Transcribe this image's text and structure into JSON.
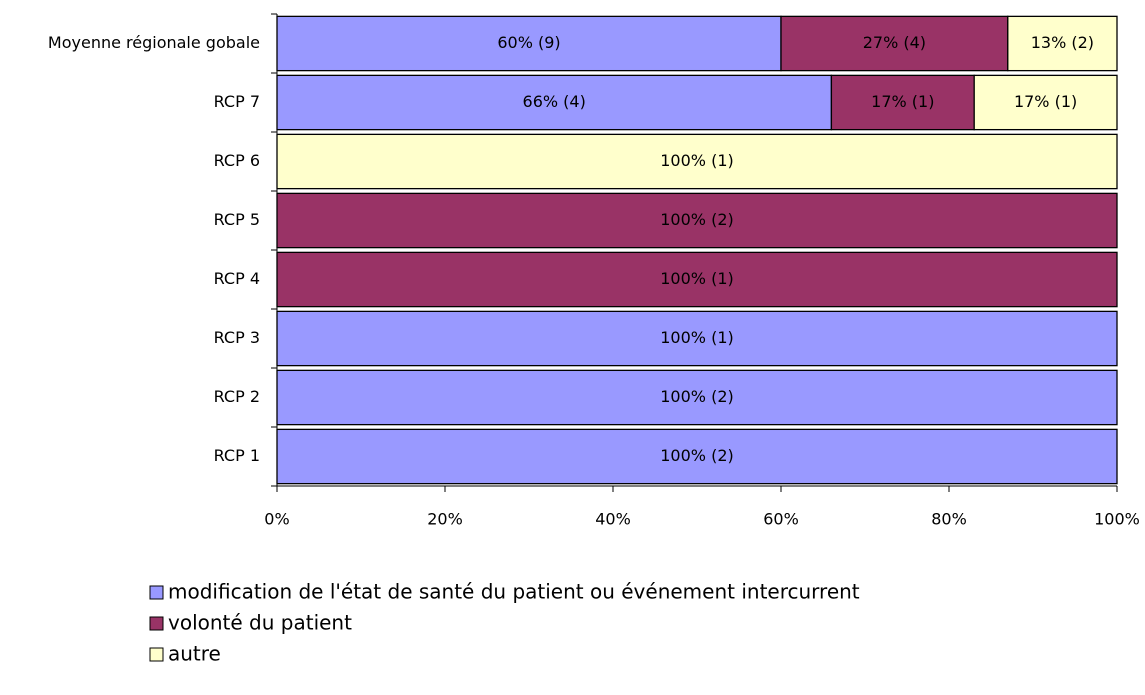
{
  "chart_data": {
    "type": "stacked-hbar",
    "categories": [
      "Moyenne régionale gobale",
      "RCP 7",
      "RCP 6",
      "RCP 5",
      "RCP 4",
      "RCP 3",
      "RCP 2",
      "RCP 1"
    ],
    "series": [
      {
        "name": "modification de l'état de santé du patient ou événement intercurrent",
        "color": "#9999ff",
        "values": [
          60,
          66,
          0,
          0,
          0,
          100,
          100,
          100
        ],
        "value_labels": [
          "60% (9)",
          "66% (4)",
          null,
          null,
          null,
          "100% (1)",
          "100% (2)",
          "100% (2)"
        ]
      },
      {
        "name": "volonté du patient",
        "color": "#993366",
        "values": [
          27,
          17,
          0,
          100,
          100,
          0,
          0,
          0
        ],
        "value_labels": [
          "27% (4)",
          "17% (1)",
          null,
          "100% (2)",
          "100% (1)",
          null,
          null,
          null
        ]
      },
      {
        "name": "autre",
        "color": "#ffffcc",
        "values": [
          13,
          17,
          100,
          0,
          0,
          0,
          0,
          0
        ],
        "value_labels": [
          "13% (2)",
          "17% (1)",
          "100% (1)",
          null,
          null,
          null,
          null,
          null
        ]
      }
    ],
    "xlim": [
      0,
      100
    ],
    "xticks": [
      {
        "value": 0,
        "label": "0%"
      },
      {
        "value": 20,
        "label": "20%"
      },
      {
        "value": 40,
        "label": "40%"
      },
      {
        "value": 60,
        "label": "60%"
      },
      {
        "value": 80,
        "label": "80%"
      },
      {
        "value": 100,
        "label": "100%"
      }
    ],
    "legend": "bottom"
  }
}
